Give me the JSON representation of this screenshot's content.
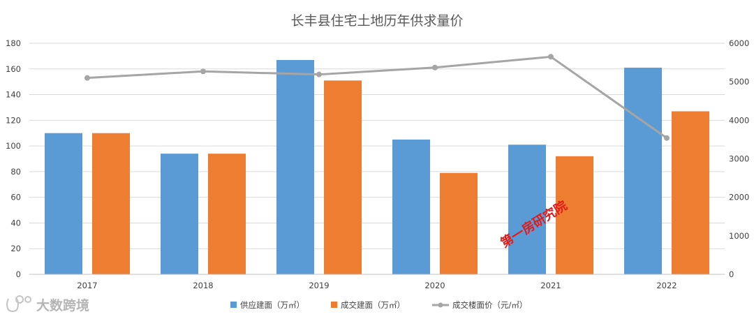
{
  "chart_data": {
    "type": "bar",
    "title": "长丰县住宅土地历年供求量价",
    "categories": [
      "2017",
      "2018",
      "2019",
      "2020",
      "2021",
      "2022"
    ],
    "series": [
      {
        "name": "供应建面（万㎡）",
        "kind": "bar",
        "axis": "left",
        "color": "#5b9bd5",
        "values": [
          110,
          94,
          167,
          105,
          101,
          161
        ]
      },
      {
        "name": "成交建面（万㎡）",
        "kind": "bar",
        "axis": "left",
        "color": "#ed7d31",
        "values": [
          110,
          94,
          151,
          79,
          92,
          127
        ]
      },
      {
        "name": "成交楼面价（元/㎡）",
        "kind": "line",
        "axis": "right",
        "color": "#a5a5a5",
        "values": [
          5100,
          5270,
          5190,
          5370,
          5650,
          3540
        ]
      }
    ],
    "left_axis": {
      "ylim": [
        0,
        180
      ],
      "ticks": [
        0,
        20,
        40,
        60,
        80,
        100,
        120,
        140,
        160,
        180
      ]
    },
    "right_axis": {
      "ylim": [
        0,
        6000
      ],
      "ticks": [
        0,
        1000,
        2000,
        3000,
        4000,
        5000,
        6000
      ]
    },
    "grid": true,
    "legend_position": "bottom"
  },
  "watermark": {
    "text": "第一房研究院"
  },
  "logo": {
    "text": "大数跨境"
  }
}
